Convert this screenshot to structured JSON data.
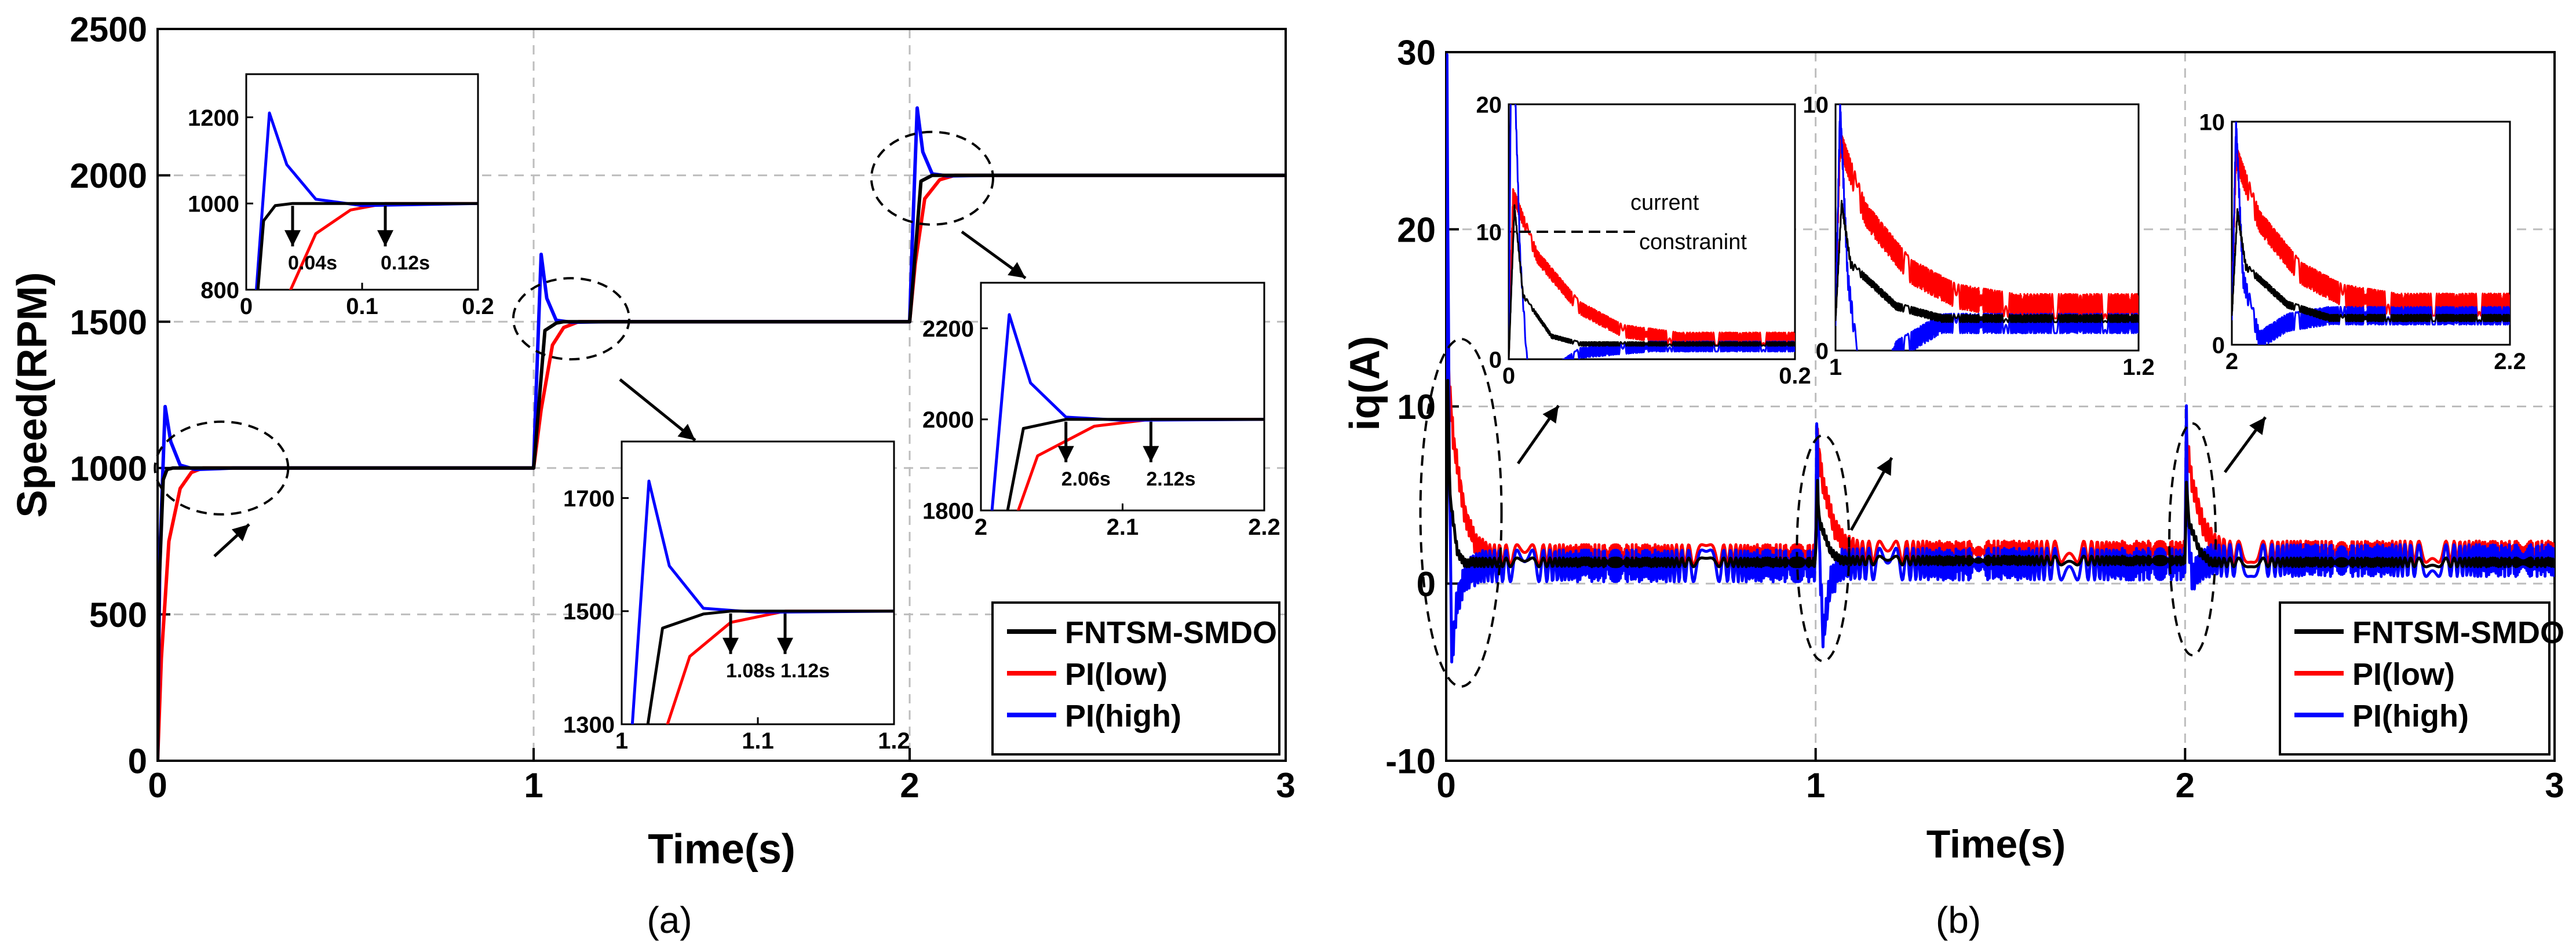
{
  "chart_data": [
    {
      "type": "line",
      "panel_label": "(a)",
      "xlabel": "Time(s)",
      "ylabel": "Speed(RPM)",
      "xlim": [
        0,
        3
      ],
      "ylim": [
        0,
        2500
      ],
      "xticks": [
        "0",
        "1",
        "2",
        "3"
      ],
      "yticks": [
        "0",
        "500",
        "1000",
        "1500",
        "2000",
        "2500"
      ],
      "grid": true,
      "legend": {
        "position": "bottom-right",
        "entries": [
          "FNTSM-SMDO",
          "PI(low)",
          "PI(high)"
        ]
      },
      "series": [
        {
          "name": "FNTSM-SMDO",
          "color": "#000000",
          "x": [
            0,
            0.004,
            0.015,
            0.025,
            0.04,
            1.0,
            1.004,
            1.03,
            1.06,
            1.08,
            2.0,
            2.004,
            2.03,
            2.06,
            3.0
          ],
          "y": [
            0,
            600,
            960,
            995,
            1000,
            1000,
            1060,
            1470,
            1495,
            1500,
            1500,
            1560,
            1980,
            2000,
            2000
          ]
        },
        {
          "name": "PI(low)",
          "color": "#ff0000",
          "x": [
            0,
            0.01,
            0.03,
            0.06,
            0.09,
            0.12,
            1.0,
            1.02,
            1.05,
            1.08,
            1.12,
            2.0,
            2.015,
            2.04,
            2.08,
            2.12,
            3.0
          ],
          "y": [
            0,
            350,
            750,
            930,
            985,
            1000,
            1000,
            1200,
            1420,
            1480,
            1500,
            1500,
            1700,
            1920,
            1985,
            2000,
            2000
          ]
        },
        {
          "name": "PI(high)",
          "color": "#0000ff",
          "x": [
            0,
            0.006,
            0.02,
            0.035,
            0.06,
            0.1,
            0.2,
            1.0,
            1.005,
            1.02,
            1.035,
            1.06,
            1.1,
            1.2,
            2.0,
            2.005,
            2.02,
            2.035,
            2.06,
            2.1,
            2.2,
            3.0
          ],
          "y": [
            0,
            700,
            1210,
            1090,
            1010,
            995,
            1000,
            1000,
            1200,
            1730,
            1580,
            1505,
            1498,
            1500,
            1500,
            1700,
            2230,
            2080,
            2005,
            1998,
            2000,
            2000
          ]
        }
      ],
      "insets": [
        {
          "xlim": [
            0,
            0.2
          ],
          "ylim": [
            800,
            1300
          ],
          "xticks": [
            "0",
            "0.1",
            "0.2"
          ],
          "yticks": [
            "800",
            "1000",
            "1200"
          ],
          "annotations": [
            {
              "text": "0.04s",
              "x": 0.04
            },
            {
              "text": "0.12s",
              "x": 0.12
            }
          ]
        },
        {
          "xlim": [
            1,
            1.2
          ],
          "ylim": [
            1300,
            1800
          ],
          "xticks": [
            "1",
            "1.1",
            "1.2"
          ],
          "yticks": [
            "1300",
            "1500",
            "1700"
          ],
          "annotations": [
            {
              "text": "1.08s",
              "x": 1.08
            },
            {
              "text": "1.12s",
              "x": 1.12
            }
          ]
        },
        {
          "xlim": [
            2,
            2.2
          ],
          "ylim": [
            1800,
            2300
          ],
          "xticks": [
            "2",
            "2.1",
            "2.2"
          ],
          "yticks": [
            "1800",
            "2000",
            "2200"
          ],
          "annotations": [
            {
              "text": "2.06s",
              "x": 2.06
            },
            {
              "text": "2.12s",
              "x": 2.12
            }
          ]
        }
      ]
    },
    {
      "type": "line",
      "panel_label": "(b)",
      "xlabel": "Time(s)",
      "ylabel": "iq(A)",
      "xlim": [
        0,
        3
      ],
      "ylim": [
        -10,
        30
      ],
      "xticks": [
        "0",
        "1",
        "2",
        "3"
      ],
      "yticks": [
        "-10",
        "0",
        "10",
        "20",
        "30"
      ],
      "grid": true,
      "legend": {
        "position": "bottom-right",
        "entries": [
          "FNTSM-SMDO",
          "PI(low)",
          "PI(high)"
        ]
      },
      "series": [
        {
          "name": "FNTSM-SMDO",
          "color": "#000000",
          "x": [
            0,
            0.004,
            0.01,
            0.03,
            0.05,
            1.0,
            1.004,
            1.01,
            1.04,
            1.07,
            2.0,
            2.004,
            2.01,
            2.04,
            2.07,
            3.0
          ],
          "y": [
            0,
            12,
            5,
            1.8,
            1.2,
            1.2,
            6,
            3.5,
            1.8,
            1.3,
            1.3,
            6,
            3.5,
            1.8,
            1.2,
            1.2
          ]
        },
        {
          "name": "PI(low)",
          "color": "#ff0000",
          "x": [
            0,
            0.003,
            0.02,
            0.05,
            0.08,
            0.12,
            1.0,
            1.003,
            1.02,
            1.05,
            1.08,
            1.12,
            2.0,
            2.003,
            2.02,
            2.05,
            2.08,
            2.12,
            3.0
          ],
          "y": [
            0,
            13,
            8,
            4,
            2.2,
            1.6,
            1.6,
            8.5,
            5.5,
            3.2,
            2.2,
            1.8,
            1.8,
            8.5,
            5.5,
            3.2,
            2.2,
            1.8,
            1.8
          ]
        },
        {
          "name": "PI(high)",
          "color": "#0000ff",
          "x": [
            0,
            0.002,
            0.008,
            0.015,
            0.03,
            0.05,
            0.1,
            1.0,
            1.003,
            1.008,
            1.02,
            1.04,
            1.07,
            2.0,
            2.003,
            2.008,
            2.02,
            2.04,
            2.07,
            3.0
          ],
          "y": [
            0,
            30,
            8,
            -4,
            -1,
            0.5,
            1,
            1,
            10,
            3,
            -3,
            0,
            1.1,
            1.1,
            10,
            3,
            0.2,
            1,
            1.3,
            1.3
          ]
        }
      ],
      "annotations": [
        {
          "text": "current"
        },
        {
          "text": "constranint"
        }
      ],
      "insets": [
        {
          "xlim": [
            0,
            0.2
          ],
          "ylim": [
            0,
            20
          ],
          "xticks": [
            "0",
            "0.2"
          ],
          "yticks": [
            "0",
            "10",
            "20"
          ]
        },
        {
          "xlim": [
            1,
            1.2
          ],
          "ylim": [
            0,
            10
          ],
          "xticks": [
            "1",
            "1.2"
          ],
          "yticks": [
            "0",
            "10"
          ]
        },
        {
          "xlim": [
            2,
            2.2
          ],
          "ylim": [
            0,
            10
          ],
          "xticks": [
            "2",
            "2.2"
          ],
          "yticks": [
            "0",
            "10"
          ]
        }
      ]
    }
  ]
}
